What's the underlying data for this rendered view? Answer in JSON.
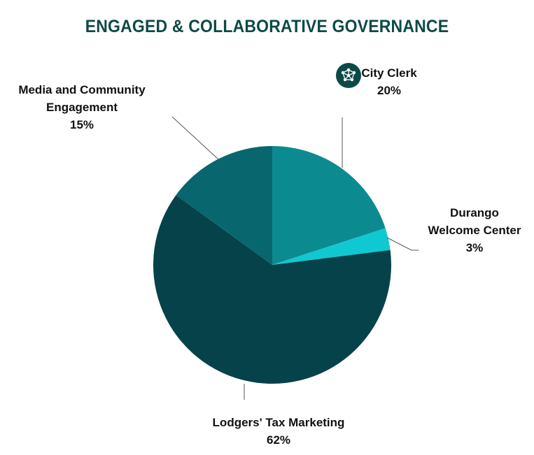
{
  "chart_data": {
    "type": "pie",
    "title": "ENGAGED & COLLABORATIVE GOVERNANCE",
    "slices": [
      {
        "label": "City Clerk",
        "value": 20,
        "value_label": "20%",
        "color": "#0b8b90"
      },
      {
        "label": "Durango Welcome Center",
        "value": 3,
        "value_label": "3%",
        "color": "#10c8d2"
      },
      {
        "label": "Lodgers' Tax Marketing",
        "value": 62,
        "value_label": "62%",
        "color": "#06424a"
      },
      {
        "label": "Media and Community Engagement",
        "value": 15,
        "value_label": "15%",
        "color": "#08666e"
      }
    ],
    "start_angle_deg": 0,
    "direction": "clockwise",
    "legend": "none"
  },
  "labels": {
    "city_clerk": {
      "line1": "City Clerk",
      "pct": "20%"
    },
    "durango": {
      "line1": "Durango",
      "line2": "Welcome Center",
      "pct": "3%"
    },
    "lodgers": {
      "line1": "Lodgers' Tax Marketing",
      "pct": "62%"
    },
    "media": {
      "line1": "Media and Community",
      "line2": "Engagement",
      "pct": "15%"
    }
  },
  "icon": {
    "name": "network-molecule-icon",
    "color": "#0b4a46"
  }
}
